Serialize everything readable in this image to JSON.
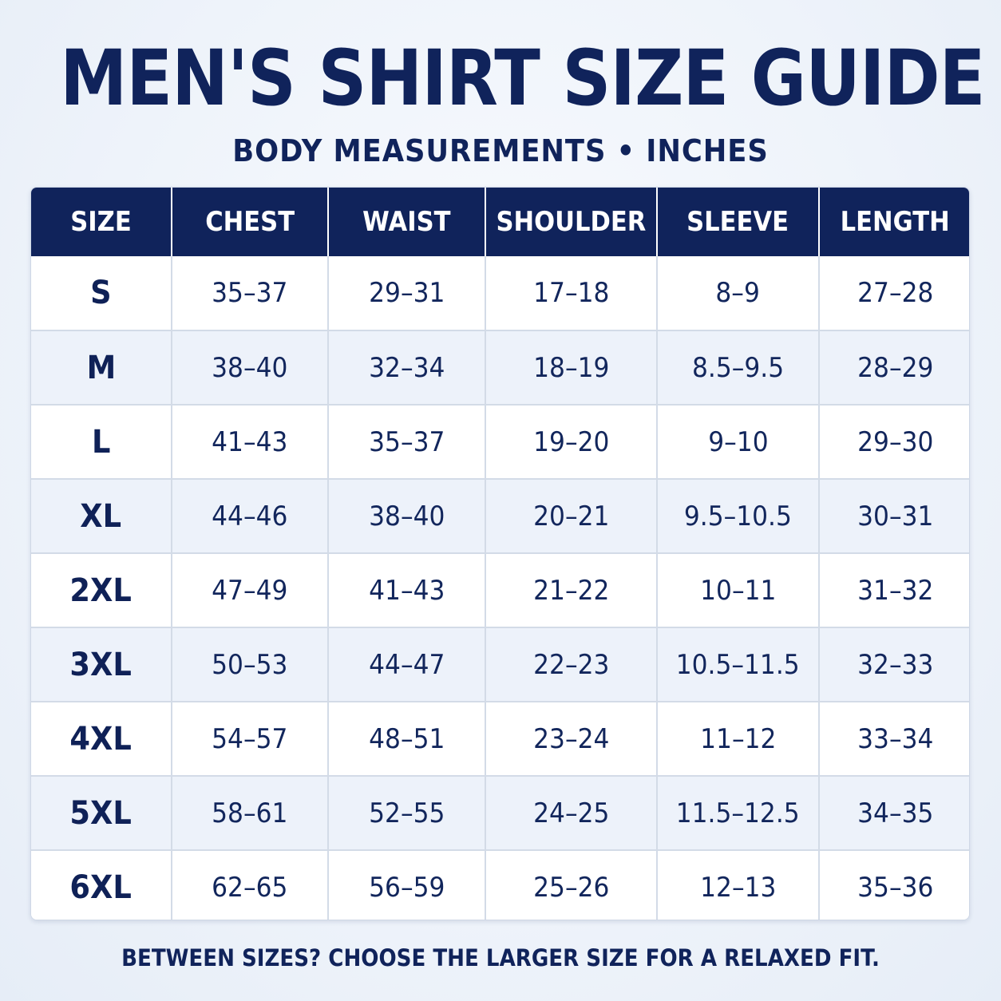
{
  "title": "MEN'S SHIRT SIZE GUIDE",
  "subtitle": "BODY MEASUREMENTS • INCHES",
  "table": {
    "headers": [
      "SIZE",
      "CHEST",
      "WAIST",
      "SHOULDER",
      "SLEEVE",
      "LENGTH"
    ],
    "rows": [
      [
        "S",
        "35–37",
        "29–31",
        "17–18",
        "8–9",
        "27–28"
      ],
      [
        "M",
        "38–40",
        "32–34",
        "18–19",
        "8.5–9.5",
        "28–29"
      ],
      [
        "L",
        "41–43",
        "35–37",
        "19–20",
        "9–10",
        "29–30"
      ],
      [
        "XL",
        "44–46",
        "38–40",
        "20–21",
        "9.5–10.5",
        "30–31"
      ],
      [
        "2XL",
        "47–49",
        "41–43",
        "21–22",
        "10–11",
        "31–32"
      ],
      [
        "3XL",
        "50–53",
        "44–47",
        "22–23",
        "10.5–11.5",
        "32–33"
      ],
      [
        "4XL",
        "54–57",
        "48–51",
        "23–24",
        "11–12",
        "33–34"
      ],
      [
        "5XL",
        "58–61",
        "52–55",
        "24–25",
        "11.5–12.5",
        "34–35"
      ],
      [
        "6XL",
        "62–65",
        "56–59",
        "25–26",
        "12–13",
        "35–36"
      ]
    ]
  },
  "footer_note": "BETWEEN SIZES? CHOOSE THE LARGER SIZE FOR A RELAXED FIT.",
  "colors": {
    "header_bg": "#10235b",
    "text": "#10235b",
    "row_alt": "#edf2fa",
    "row": "#ffffff"
  }
}
